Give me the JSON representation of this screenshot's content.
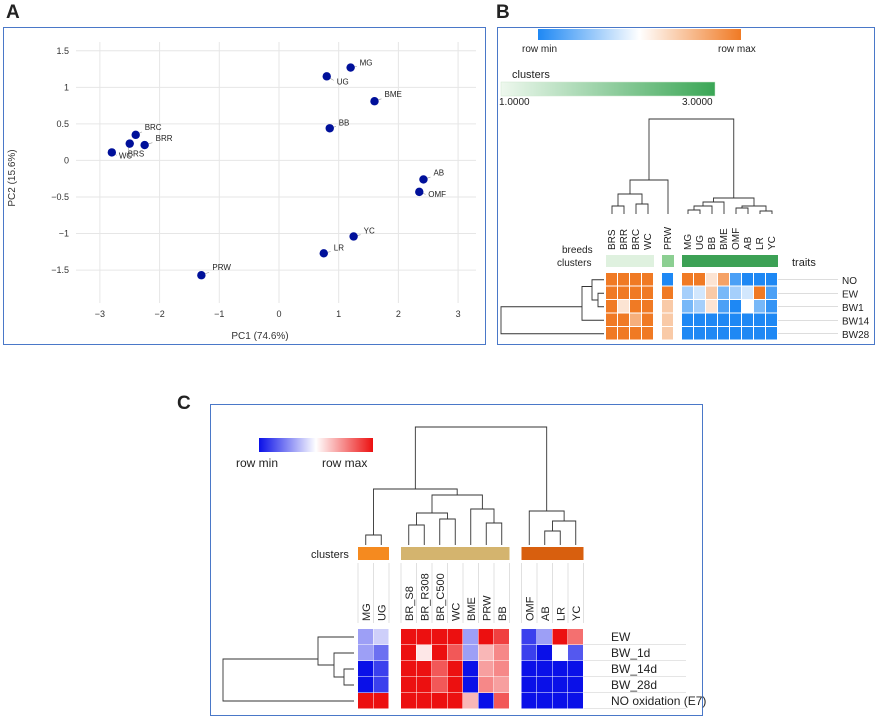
{
  "panel_labels": [
    "A",
    "B",
    "C"
  ],
  "chart_data": [
    {
      "type": "scatter",
      "xlabel": "PC1 (74.6%)",
      "ylabel": "PC2 (15.6%)",
      "xlim": [
        -3.4,
        3.3
      ],
      "ylim": [
        -1.95,
        1.62
      ],
      "xticks": [
        -3,
        -2,
        -1,
        0,
        1,
        2,
        3
      ],
      "yticks": [
        -1.5,
        -1,
        -0.5,
        0,
        0.5,
        1,
        1.5
      ],
      "grid": true,
      "point_color": "#00109a",
      "points": [
        {
          "label": "MG",
          "x": 1.2,
          "y": 1.27
        },
        {
          "label": "UG",
          "x": 0.8,
          "y": 1.15
        },
        {
          "label": "BME",
          "x": 1.6,
          "y": 0.81
        },
        {
          "label": "BB",
          "x": 0.85,
          "y": 0.44
        },
        {
          "label": "BRC",
          "x": -2.4,
          "y": 0.35
        },
        {
          "label": "BRR",
          "x": -2.25,
          "y": 0.21
        },
        {
          "label": "BRS",
          "x": -2.5,
          "y": 0.23
        },
        {
          "label": "WC",
          "x": -2.8,
          "y": 0.11
        },
        {
          "label": "AB",
          "x": 2.42,
          "y": -0.26
        },
        {
          "label": "OMF",
          "x": 2.35,
          "y": -0.43
        },
        {
          "label": "YC",
          "x": 1.25,
          "y": -1.04
        },
        {
          "label": "LR",
          "x": 0.75,
          "y": -1.27
        },
        {
          "label": "PRW",
          "x": -1.3,
          "y": -1.57
        }
      ]
    },
    {
      "type": "heatmap",
      "colorbar": {
        "min_label": "row min",
        "max_label": "row max",
        "min_color": "#1e88f4",
        "max_color": "#f07a24"
      },
      "clusters_bar": {
        "title": "clusters",
        "min_label": "1.0000",
        "max_label": "3.0000",
        "color": "#3aa655"
      },
      "column_groups": [
        {
          "columns": [
            "BRS",
            "BRR",
            "BRC",
            "WC"
          ],
          "cluster_color": "#dff1df"
        },
        {
          "columns": [
            "PRW"
          ],
          "cluster_color": "#8ccf92"
        },
        {
          "columns": [
            "MG",
            "UG",
            "BB",
            "BME",
            "OMF",
            "AB",
            "LR",
            "YC"
          ],
          "cluster_color": "#3ca155"
        }
      ],
      "breeds_label": "breeds",
      "clusters_label": "clusters",
      "traits_label": "traits",
      "rows": [
        "NO",
        "EW",
        "BW1",
        "BW14",
        "BW28"
      ],
      "values": [
        [
          1,
          1,
          1,
          1,
          0,
          1,
          1,
          0.6,
          0.85,
          0.1,
          0,
          0,
          0
        ],
        [
          1,
          1,
          1,
          1,
          1,
          0.3,
          0.4,
          0.7,
          0.2,
          0.3,
          0.4,
          1,
          0.1
        ],
        [
          1,
          0.6,
          1,
          1,
          0.7,
          0.2,
          0.3,
          0.6,
          0.1,
          0,
          0.5,
          0.2,
          0.05
        ],
        [
          1,
          1,
          0.8,
          1,
          0.7,
          0,
          0,
          0,
          0,
          0,
          0,
          0,
          0
        ],
        [
          1,
          1,
          1,
          1,
          0.7,
          0,
          0,
          0,
          0,
          0,
          0,
          0,
          0
        ]
      ]
    },
    {
      "type": "heatmap",
      "colorbar": {
        "min_label": "row min",
        "max_label": "row max",
        "min_color": "#0a10e8",
        "max_color": "#ec1010"
      },
      "cluster_label": "clusters",
      "column_groups": [
        {
          "columns": [
            "MG",
            "UG"
          ],
          "cluster_color": "#f58a1f"
        },
        {
          "columns": [
            "BR_S8",
            "BR_R308",
            "BR_C500",
            "WC",
            "BME",
            "PRW",
            "BB"
          ],
          "cluster_color": "#d4b46e"
        },
        {
          "columns": [
            "OMF",
            "AB",
            "LR",
            "YC"
          ],
          "cluster_color": "#d85f0e"
        }
      ],
      "rows": [
        "EW",
        "BW_1d",
        "BW_14d",
        "BW_28d",
        "NO oxidation (E7)"
      ],
      "values": [
        [
          0.3,
          0.4,
          1,
          1,
          1,
          1,
          0.3,
          1,
          0.9,
          0.1,
          0.3,
          1,
          0.8
        ],
        [
          0.3,
          0.2,
          1,
          0.55,
          1,
          0.85,
          0.3,
          0.65,
          0.75,
          0.1,
          0,
          0.5,
          0.15
        ],
        [
          0,
          0.1,
          1,
          1,
          0.85,
          1,
          0,
          0.7,
          0.75,
          0,
          0,
          0,
          0
        ],
        [
          0,
          0.1,
          1,
          1,
          0.85,
          1,
          0,
          0.75,
          0.7,
          0,
          0,
          0,
          0
        ],
        [
          1,
          1,
          1,
          1,
          1,
          1,
          0.65,
          0,
          0.85,
          0,
          0,
          0,
          0
        ]
      ]
    }
  ]
}
